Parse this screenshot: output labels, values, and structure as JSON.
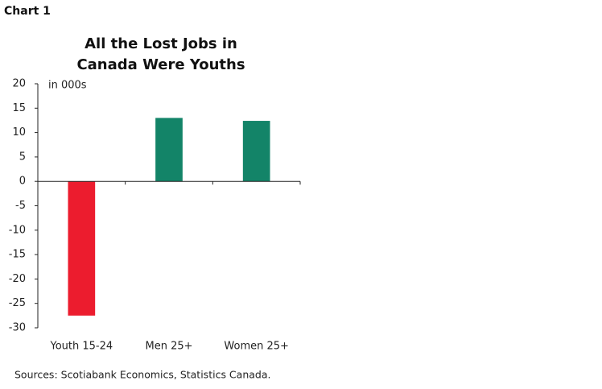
{
  "chart_label": "Chart 1",
  "chart_data": {
    "type": "bar",
    "title": "All the Lost Jobs in Canada Were Youths",
    "unit_label": "in 000s",
    "source": "Sources: Scotiabank Economics, Statistics Canada.",
    "categories": [
      "Youth 15-24",
      "Men 25+",
      "Women 25+"
    ],
    "values": [
      -27.5,
      13,
      12.4
    ],
    "colors": [
      "#ec1c2e",
      "#138468",
      "#138468"
    ],
    "ylim": [
      -30,
      20
    ],
    "yticks": [
      -30,
      -25,
      -20,
      -15,
      -10,
      -5,
      0,
      5,
      10,
      15,
      20
    ],
    "grid": false
  }
}
